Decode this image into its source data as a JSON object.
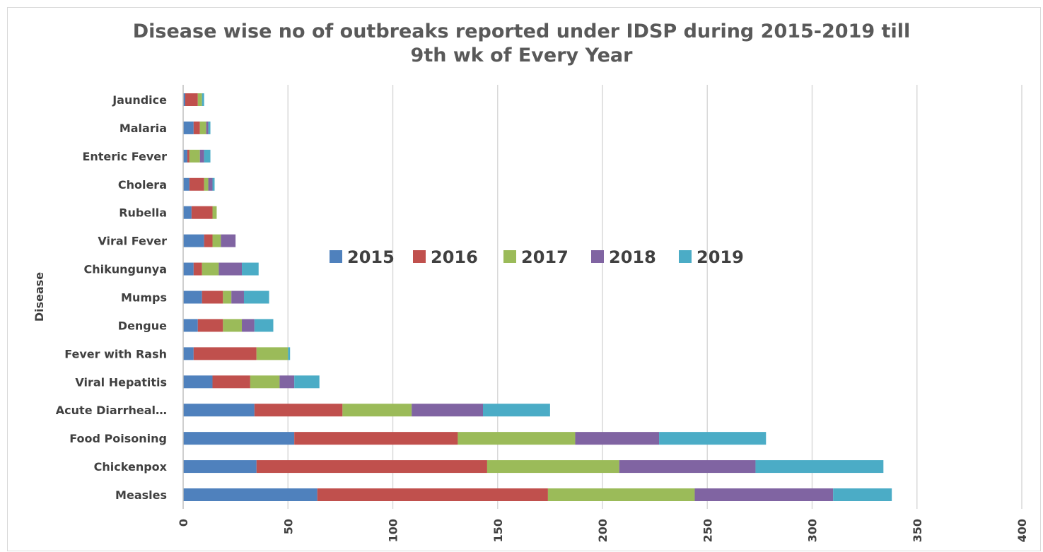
{
  "chart_data": {
    "type": "bar",
    "orientation": "horizontal",
    "stacked": true,
    "title": "Disease wise no of outbreaks reported under IDSP during 2015-2019 till 9th wk of Every Year",
    "title_lines": [
      "Disease wise no of outbreaks reported under IDSP during 2015-2019 till",
      "9th wk of Every Year"
    ],
    "ylabel": "Disease",
    "xlabel": "",
    "xlim": [
      0,
      400
    ],
    "xticks": [
      "0",
      "50",
      "100",
      "150",
      "200",
      "250",
      "300",
      "350",
      "400"
    ],
    "xtick_values": [
      0,
      50,
      100,
      150,
      200,
      250,
      300,
      350,
      400
    ],
    "grid": true,
    "legend_position": "inside-center",
    "categories": [
      "Jaundice",
      "Malaria",
      "Enteric Fever",
      "Cholera",
      "Rubella",
      "Viral Fever",
      "Chikungunya",
      "Mumps",
      "Dengue",
      "Fever with Rash",
      "Viral Hepatitis",
      "Acute Diarrheal…",
      "Food Poisoning",
      "Chickenpox",
      "Measles"
    ],
    "series": [
      {
        "name": "2015",
        "color": "#4f81bd",
        "values": [
          1,
          5,
          2,
          3,
          4,
          10,
          5,
          9,
          7,
          5,
          14,
          34,
          53,
          35,
          64
        ]
      },
      {
        "name": "2016",
        "color": "#c0504d",
        "values": [
          6,
          3,
          1,
          7,
          10,
          4,
          4,
          10,
          12,
          30,
          18,
          42,
          78,
          110,
          110
        ]
      },
      {
        "name": "2017",
        "color": "#9bbb59",
        "values": [
          2,
          3,
          5,
          2,
          2,
          4,
          8,
          4,
          9,
          15,
          14,
          33,
          56,
          63,
          70
        ]
      },
      {
        "name": "2018",
        "color": "#8064a2",
        "values": [
          0,
          1,
          2,
          2,
          0,
          7,
          11,
          6,
          6,
          0,
          7,
          34,
          40,
          65,
          66
        ]
      },
      {
        "name": "2019",
        "color": "#4bacc6",
        "values": [
          1,
          1,
          3,
          1,
          0,
          0,
          8,
          12,
          9,
          1,
          12,
          32,
          51,
          61,
          28
        ]
      }
    ]
  }
}
